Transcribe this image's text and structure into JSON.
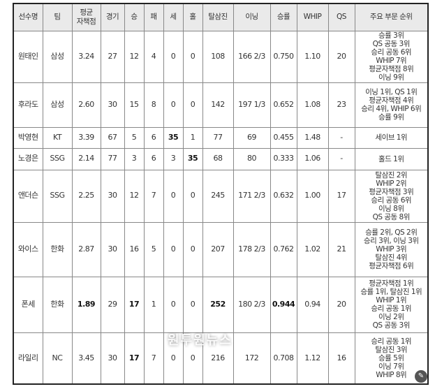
{
  "headers": [
    "선수명",
    "팀",
    "평균\n자책점",
    "경기",
    "승",
    "패",
    "세",
    "홀",
    "탈삼진",
    "이닝",
    "승률",
    "WHIP",
    "QS",
    "주요 부문 순위"
  ],
  "rows": [
    {
      "name": "원태인",
      "team": "삼성",
      "era": "3.24",
      "g": "27",
      "w": "12",
      "l": "4",
      "sv": "0",
      "hld": "0",
      "so": "108",
      "ip": "166 2/3",
      "pct": "0.750",
      "whip": "1.10",
      "qs": "20",
      "ranks": [
        "승률 3위",
        "QS 공동 3위",
        "승리 공동 6위",
        "WHIP 7위",
        "평균자책점 8위",
        "이닝 9위"
      ]
    },
    {
      "name": "후라도",
      "team": "삼성",
      "era": "2.60",
      "g": "30",
      "w": "15",
      "l": "8",
      "sv": "0",
      "hld": "0",
      "so": "142",
      "ip": "197 1/3",
      "pct": "0.652",
      "whip": "1.08",
      "qs": "23",
      "ranks": [
        "이닝 1위, QS 1위",
        "평균자책점 4위",
        "승리 4위, WHIP 6위",
        "승률 9위"
      ]
    },
    {
      "name": "박영현",
      "team": "KT",
      "era": "3.39",
      "g": "67",
      "w": "5",
      "l": "6",
      "sv": "35",
      "hld": "1",
      "so": "77",
      "ip": "69",
      "pct": "0.455",
      "whip": "1.48",
      "qs": "-",
      "ranks": [
        "세이브 1위"
      ],
      "bold": [
        "sv"
      ]
    },
    {
      "name": "노경은",
      "team": "SSG",
      "era": "2.14",
      "g": "77",
      "w": "3",
      "l": "6",
      "sv": "3",
      "hld": "35",
      "so": "68",
      "ip": "80",
      "pct": "0.333",
      "whip": "1.06",
      "qs": "-",
      "ranks": [
        "홀드 1위"
      ],
      "bold": [
        "hld"
      ]
    },
    {
      "name": "앤더슨",
      "team": "SSG",
      "era": "2.25",
      "g": "30",
      "w": "12",
      "l": "7",
      "sv": "0",
      "hld": "0",
      "so": "245",
      "ip": "171 2/3",
      "pct": "0.632",
      "whip": "1.00",
      "qs": "17",
      "ranks": [
        "탈삼진 2위",
        "WHIP 2위",
        "평균자책점 3위",
        "승리 공동 6위",
        "이닝 8위",
        "QS 공동 8위"
      ]
    },
    {
      "name": "와이스",
      "team": "한화",
      "era": "2.87",
      "g": "30",
      "w": "16",
      "l": "5",
      "sv": "0",
      "hld": "0",
      "so": "207",
      "ip": "178 2/3",
      "pct": "0.762",
      "whip": "1.02",
      "qs": "21",
      "ranks": [
        "승률 2위, QS 2위",
        "승리 3위, 이닝 3위",
        "WHIP 3위",
        "탈삼진 4위",
        "평균자책점 6위"
      ]
    },
    {
      "name": "폰세",
      "team": "한화",
      "era": "1.89",
      "g": "29",
      "w": "17",
      "l": "1",
      "sv": "0",
      "hld": "0",
      "so": "252",
      "ip": "180 2/3",
      "pct": "0.944",
      "whip": "0.94",
      "qs": "20",
      "ranks": [
        "평균자책점 1위",
        "승률 1위, 탈삼진 1위",
        "WHIP 1위",
        "승리 공동 1위",
        "이닝 2위",
        "QS 공동 3위"
      ],
      "bold": [
        "era",
        "w",
        "so",
        "pct"
      ]
    },
    {
      "name": "라일리",
      "team": "NC",
      "era": "3.45",
      "g": "30",
      "w": "17",
      "l": "7",
      "sv": "0",
      "hld": "0",
      "so": "216",
      "ip": "172",
      "pct": "0.708",
      "whip": "1.12",
      "qs": "16",
      "ranks": [
        "승리 공동 1위",
        "탈삼진 3위",
        "승률 5위",
        "이닝 7위",
        "WHIP 8위"
      ],
      "bold": [
        "w"
      ]
    }
  ],
  "watermark": "원투원뉴스",
  "badge_icon": "magic-wand-icon"
}
